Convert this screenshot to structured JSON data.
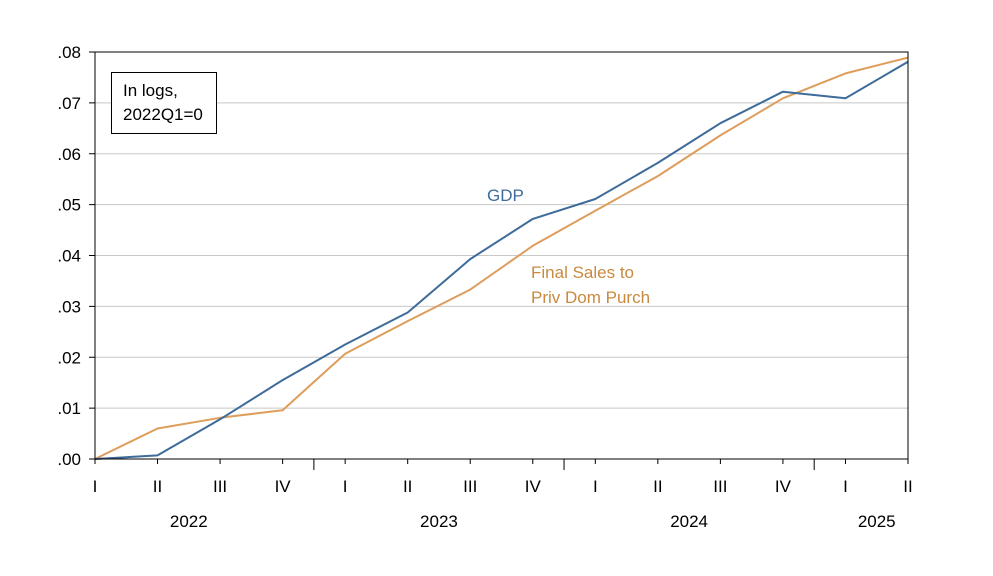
{
  "chart_data": {
    "type": "line",
    "x": [
      "2022Q1",
      "2022Q2",
      "2022Q3",
      "2022Q4",
      "2023Q1",
      "2023Q2",
      "2023Q3",
      "2023Q4",
      "2024Q1",
      "2024Q2",
      "2024Q3",
      "2024Q4",
      "2025Q1",
      "2025Q2"
    ],
    "quarter_labels": [
      "I",
      "II",
      "III",
      "IV",
      "I",
      "II",
      "III",
      "IV",
      "I",
      "II",
      "III",
      "IV",
      "I",
      "II"
    ],
    "year_labels": [
      {
        "year": "2022",
        "quarter_index": 1.5
      },
      {
        "year": "2023",
        "quarter_index": 5.5
      },
      {
        "year": "2024",
        "quarter_index": 9.5
      },
      {
        "year": "2025",
        "quarter_index": 12.5
      }
    ],
    "series": [
      {
        "name": "GDP",
        "color": "#3e6b9a",
        "values": [
          0.0,
          0.0007,
          0.0078,
          0.0155,
          0.0225,
          0.0288,
          0.0393,
          0.0472,
          0.0511,
          0.0582,
          0.066,
          0.0722,
          0.0709,
          0.0781
        ]
      },
      {
        "name": "Final Sales to Priv Dom Purch",
        "color": "#de9d5a",
        "values": [
          0.0,
          0.006,
          0.0081,
          0.0096,
          0.0207,
          0.0271,
          0.0333,
          0.0419,
          0.0488,
          0.0556,
          0.0636,
          0.0709,
          0.0758,
          0.0789
        ]
      }
    ],
    "series_labels": {
      "gdp": "GDP",
      "final_sales_line1": "Final Sales to",
      "final_sales_line2": "Priv Dom Purch"
    },
    "annotation": {
      "line1": "In logs,",
      "line2": "2022Q1=0"
    },
    "ylim": [
      0.0,
      0.08
    ],
    "yticks": [
      0.0,
      0.01,
      0.02,
      0.03,
      0.04,
      0.05,
      0.06,
      0.07,
      0.08
    ],
    "ytick_labels": [
      ".00",
      ".01",
      ".02",
      ".03",
      ".04",
      ".05",
      ".06",
      ".07",
      ".08"
    ],
    "grid": true,
    "axis_color": "#000000",
    "grid_color": "#c8c8c8"
  }
}
